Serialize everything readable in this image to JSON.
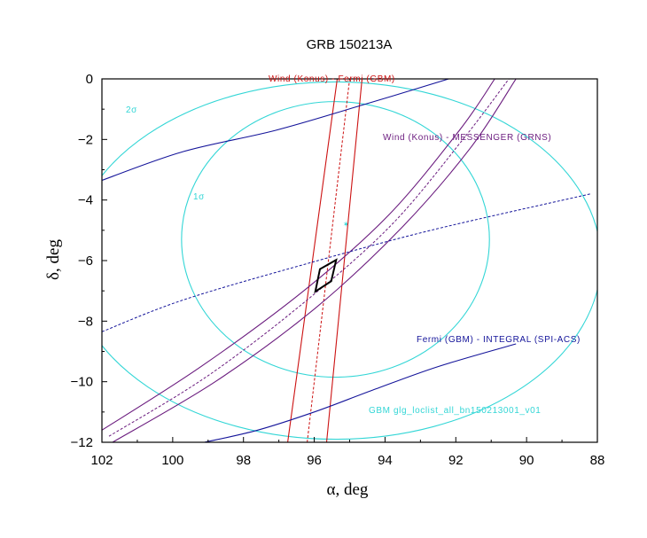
{
  "chart_data": {
    "type": "line",
    "title": "GRB 150213A",
    "xlabel": "α, deg",
    "ylabel": "δ, deg",
    "xlim": [
      102,
      88
    ],
    "ylim": [
      -12,
      0
    ],
    "x_reversed": true,
    "x_ticks": [
      102,
      100,
      98,
      96,
      94,
      92,
      90,
      88
    ],
    "y_ticks": [
      0,
      -2,
      -4,
      -6,
      -8,
      -10,
      -12
    ],
    "grid": false,
    "colors": {
      "gbm_contours": "#33d6d6",
      "konus_fermi": "#cc1111",
      "konus_messenger": "#6a1b7e",
      "fermi_integral": "#14149a",
      "box": "#000000"
    },
    "series": [
      {
        "name": "GBM glg_loclist_all_bn150213001_v01",
        "style": "contour",
        "contours": [
          {
            "label": "1σ",
            "center": [
              95.4,
              -5.3
            ],
            "rx": 4.35,
            "ry": 4.55
          },
          {
            "label": "2σ",
            "center": [
              95.4,
              -6.0
            ],
            "rx": 7.5,
            "ry": 5.9
          }
        ],
        "marker": [
          95.1,
          -4.8
        ]
      },
      {
        "name": "Wind (Konus) - Fermi (GBM)",
        "style": "annulus",
        "center": [
          [
            96.2,
            -12
          ],
          [
            95.0,
            0
          ]
        ],
        "bounds": [
          [
            [
              96.75,
              -12
            ],
            [
              95.35,
              0
            ]
          ],
          [
            [
              95.65,
              -12
            ],
            [
              94.65,
              0
            ]
          ]
        ]
      },
      {
        "name": "Wind (Konus) - MESSENGER (GRNS)",
        "style": "annulus",
        "center": [
          [
            101.8,
            -11.8
          ],
          [
            99.0,
            -9.8
          ],
          [
            96.2,
            -7.3
          ],
          [
            93.8,
            -4.8
          ],
          [
            91.8,
            -2.0
          ],
          [
            90.5,
            0
          ]
        ],
        "bounds": [
          [
            [
              102.0,
              -11.6
            ],
            [
              99.2,
              -9.5
            ],
            [
              96.3,
              -7.0
            ],
            [
              93.9,
              -4.5
            ],
            [
              91.9,
              -1.7
            ],
            [
              90.9,
              0
            ]
          ],
          [
            [
              101.7,
              -12.0
            ],
            [
              98.8,
              -10.0
            ],
            [
              96.0,
              -7.6
            ],
            [
              93.6,
              -5.0
            ],
            [
              91.6,
              -2.3
            ],
            [
              90.3,
              0
            ]
          ]
        ]
      },
      {
        "name": "Fermi (GBM) - INTEGRAL (SPI-ACS)",
        "style": "annulus",
        "center": [
          [
            102,
            -8.35
          ],
          [
            99.7,
            -7.3
          ],
          [
            96.2,
            -6.1
          ],
          [
            92.7,
            -5.0
          ],
          [
            88.2,
            -3.8
          ]
        ],
        "bounds": [
          [
            [
              102,
              -3.35
            ],
            [
              99.7,
              -2.4
            ],
            [
              97.1,
              -1.7
            ],
            [
              94.6,
              -0.85
            ],
            [
              92.2,
              0
            ]
          ],
          [
            [
              99.1,
              -12
            ],
            [
              97.6,
              -11.6
            ],
            [
              96.0,
              -11.0
            ],
            [
              94.4,
              -10.3
            ],
            [
              92.5,
              -9.5
            ],
            [
              90.3,
              -8.75
            ]
          ]
        ]
      },
      {
        "name": "localization box",
        "style": "polygon",
        "points": [
          [
            95.97,
            -7.02
          ],
          [
            95.52,
            -6.68
          ],
          [
            95.38,
            -5.98
          ],
          [
            95.84,
            -6.28
          ]
        ]
      }
    ],
    "annotations": [
      {
        "text": "Wind (Konus) - Fermi (GBM)",
        "series": 1
      },
      {
        "text": "Wind (Konus) - MESSENGER (GRNS)",
        "series": 2
      },
      {
        "text": "Fermi (GBM) - INTEGRAL (SPI-ACS)",
        "series": 3
      },
      {
        "text": "GBM  glg_loclist_all_bn150213001_v01",
        "series": 0
      },
      {
        "text": "1σ",
        "series": 0
      },
      {
        "text": "2σ",
        "series": 0
      }
    ]
  }
}
